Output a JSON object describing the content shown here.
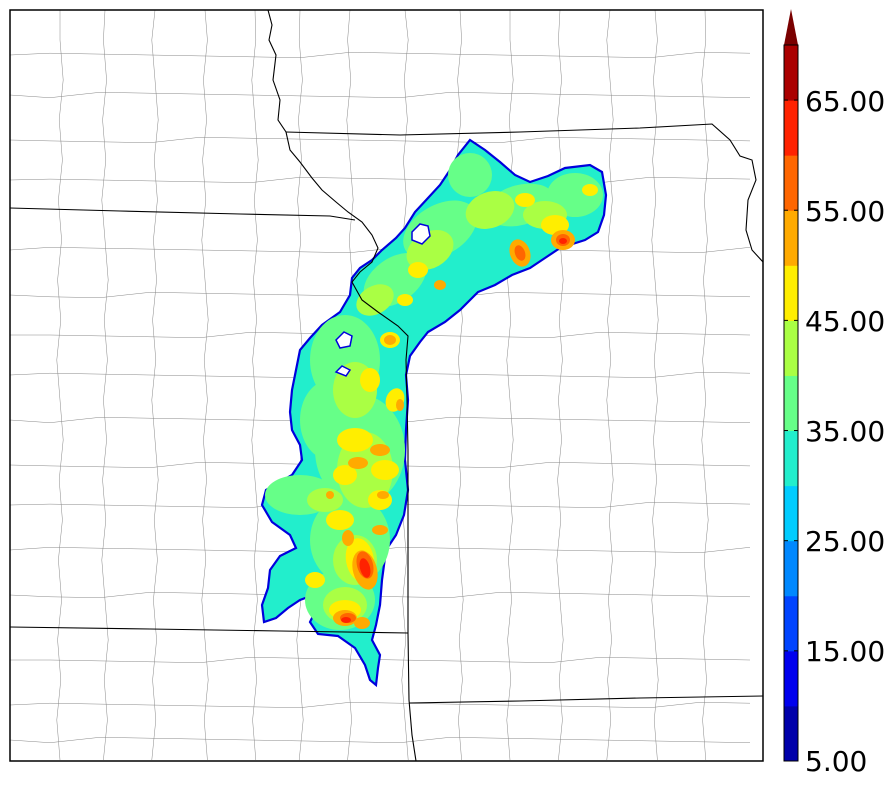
{
  "colorbar": {
    "tick_labels": [
      "5.00",
      "15.00",
      "25.00",
      "35.00",
      "45.00",
      "55.00",
      "65.00"
    ],
    "tick_values": [
      5,
      15,
      25,
      35,
      45,
      55,
      65
    ],
    "min": 5,
    "max": 70,
    "step": 5,
    "extend": "max",
    "colors": [
      "#0000aa",
      "#0000ee",
      "#0044ff",
      "#0088ff",
      "#00ccff",
      "#22eecc",
      "#66ff88",
      "#aaff44",
      "#ffee00",
      "#ffaa00",
      "#ff6600",
      "#ff2200",
      "#aa0000"
    ],
    "extend_color": "#7a0000"
  },
  "field_colors": {
    "outline": "#0000dd",
    "base": "#22eecc",
    "level_40": "#66ff88",
    "level_45": "#aaff44",
    "level_50": "#ffee00",
    "level_55": "#ffaa00",
    "level_60": "#ff6600",
    "level_65": "#ff2200",
    "level_70": "#cc0000"
  },
  "map_style": {
    "state_border_color": "#000000",
    "county_border_color": "#888888",
    "frame_color": "#000000"
  }
}
